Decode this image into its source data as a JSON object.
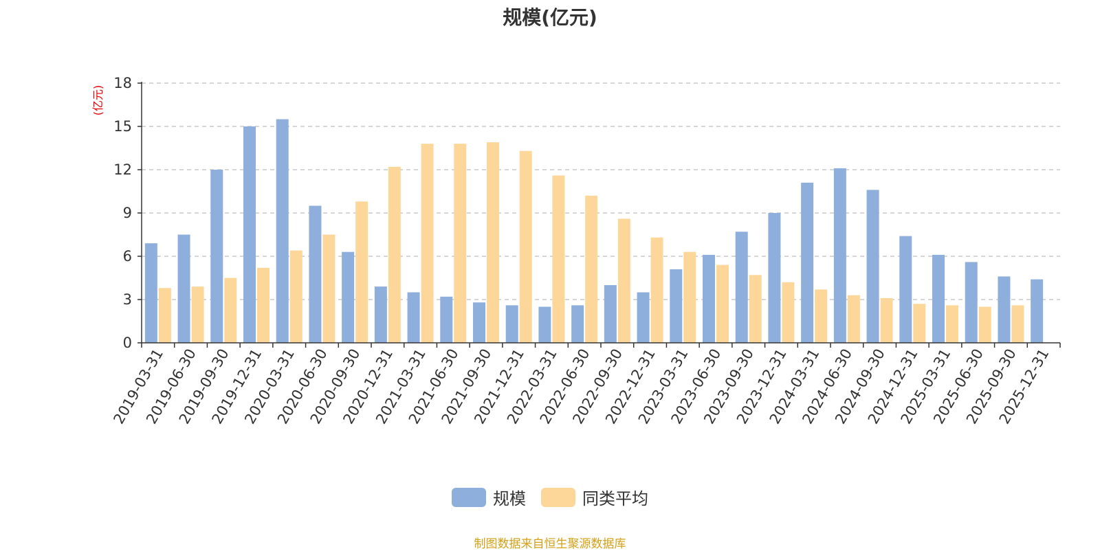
{
  "chart_data": {
    "type": "bar",
    "title": "规模(亿元)",
    "y_unit": "(亿元)",
    "ylim": [
      0,
      18
    ],
    "yticks": [
      0,
      3,
      6,
      9,
      12,
      15,
      18
    ],
    "grid": true,
    "legend_position": "bottom-center",
    "categories": [
      "2019-03-31",
      "2019-06-30",
      "2019-09-30",
      "2019-12-31",
      "2020-03-31",
      "2020-06-30",
      "2020-09-30",
      "2020-12-31",
      "2021-03-31",
      "2021-06-30",
      "2021-09-30",
      "2021-12-31",
      "2022-03-31",
      "2022-06-30",
      "2022-09-30",
      "2022-12-31",
      "2023-03-31",
      "2023-06-30",
      "2023-09-30",
      "2023-12-31",
      "2024-03-31",
      "2024-06-30",
      "2024-09-30",
      "2024-12-31",
      "2025-03-31",
      "2025-06-30",
      "2025-09-30",
      "2025-12-31"
    ],
    "series": [
      {
        "name": "规模",
        "color": "#8eaedb",
        "values": [
          6.9,
          7.5,
          12.0,
          15.0,
          15.5,
          9.5,
          6.3,
          3.9,
          3.5,
          3.2,
          2.8,
          2.6,
          2.5,
          2.6,
          4.0,
          3.5,
          5.1,
          6.1,
          7.7,
          9.0,
          11.1,
          12.1,
          10.6,
          7.4,
          6.1,
          5.6,
          4.6,
          4.4
        ]
      },
      {
        "name": "同类平均",
        "color": "#fdd79a",
        "values": [
          3.8,
          3.9,
          4.5,
          5.2,
          6.4,
          7.5,
          9.8,
          12.2,
          13.8,
          13.8,
          13.9,
          13.3,
          11.6,
          10.2,
          8.6,
          7.3,
          6.3,
          5.4,
          4.7,
          4.2,
          3.7,
          3.3,
          3.1,
          2.7,
          2.6,
          2.5,
          2.6,
          null
        ]
      }
    ]
  },
  "source_note": "制图数据来自恒生聚源数据库"
}
